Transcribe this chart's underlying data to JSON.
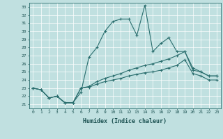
{
  "xlabel": "Humidex (Indice chaleur)",
  "bg_color": "#c0e0e0",
  "line_color": "#2a6e6e",
  "grid_color": "#a8d0d0",
  "xlim": [
    -0.5,
    23.5
  ],
  "ylim": [
    20.5,
    33.5
  ],
  "yticks": [
    21,
    22,
    23,
    24,
    25,
    26,
    27,
    28,
    29,
    30,
    31,
    32,
    33
  ],
  "xticks": [
    0,
    1,
    2,
    3,
    4,
    5,
    6,
    7,
    8,
    9,
    10,
    11,
    12,
    13,
    14,
    15,
    16,
    17,
    18,
    19,
    20,
    21,
    22,
    23
  ],
  "line1": [
    23.0,
    22.8,
    21.8,
    22.0,
    21.2,
    21.2,
    22.5,
    26.8,
    28.0,
    30.0,
    31.2,
    31.5,
    31.5,
    29.5,
    33.2,
    27.5,
    28.5,
    29.2,
    27.5,
    27.5,
    25.2,
    25.0,
    24.5,
    24.5
  ],
  "line2": [
    23.0,
    22.8,
    21.8,
    22.0,
    21.2,
    21.2,
    23.0,
    23.2,
    23.8,
    24.2,
    24.5,
    24.8,
    25.2,
    25.5,
    25.8,
    26.0,
    26.3,
    26.6,
    27.0,
    27.5,
    25.5,
    25.0,
    24.5,
    24.5
  ],
  "line3": [
    23.0,
    22.8,
    21.8,
    22.0,
    21.2,
    21.2,
    23.0,
    23.1,
    23.5,
    23.8,
    24.0,
    24.2,
    24.5,
    24.7,
    24.9,
    25.0,
    25.2,
    25.5,
    25.8,
    26.5,
    24.8,
    24.5,
    24.0,
    24.0
  ]
}
